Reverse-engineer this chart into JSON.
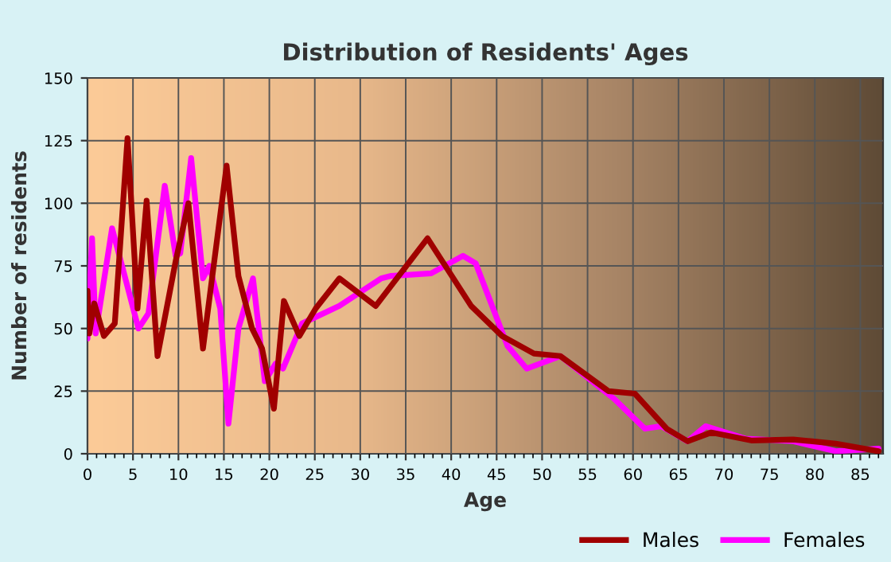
{
  "chart_data": {
    "type": "line",
    "title": "Distribution of Residents' Ages",
    "xlabel": "Age",
    "ylabel": "Number of residents",
    "xlim": [
      0,
      87.5
    ],
    "xticks": [
      0,
      5,
      10,
      15,
      20,
      25,
      30,
      35,
      40,
      45,
      50,
      55,
      60,
      65,
      70,
      75,
      80,
      85
    ],
    "ylim": [
      0,
      150
    ],
    "yticks": [
      0,
      25,
      50,
      75,
      100,
      125,
      150
    ],
    "grid": true,
    "legend": "bottom",
    "line_style": "solid",
    "marker": "none",
    "series": [
      {
        "name": "Males",
        "color": "#a00000",
        "x": [
          0,
          0.2,
          0.75,
          1.8,
          3,
          4.4,
          5.5,
          6.5,
          7.7,
          9.7,
          11.1,
          12.7,
          15.3,
          16.6,
          18.1,
          19.2,
          20.5,
          21.6,
          23.3,
          25.1,
          27.7,
          31.7,
          37.4,
          42.2,
          45.6,
          49.1,
          52,
          57.3,
          60.2,
          63.7,
          66,
          68.6,
          73,
          77.6,
          82.3,
          87
        ],
        "values": [
          65,
          48,
          60,
          47,
          52,
          126,
          58,
          101,
          39,
          77,
          100,
          42,
          115,
          71,
          50,
          42,
          18,
          61,
          47,
          58,
          70,
          59,
          86,
          59,
          47,
          40,
          39,
          25,
          24,
          10,
          5,
          8.5,
          5.3,
          5.7,
          4,
          1
        ]
      },
      {
        "name": "Females",
        "color": "#ff00ff",
        "x": [
          0,
          0.5,
          0.9,
          2.7,
          3.8,
          5.6,
          6.7,
          8.5,
          9.7,
          10.2,
          11.4,
          12.7,
          13.4,
          14.6,
          15.5,
          16.6,
          18.2,
          19.5,
          20.7,
          21.5,
          23.6,
          27.7,
          32.3,
          33.4,
          37.8,
          41.3,
          42.7,
          46.2,
          48.3,
          52,
          57.9,
          61.3,
          63.1,
          66,
          68,
          72.4,
          77.6,
          82.3,
          87
        ],
        "values": [
          46,
          86,
          48,
          90,
          75,
          50,
          56,
          107,
          79,
          80,
          118,
          70,
          75,
          58,
          12,
          50,
          70,
          29,
          36,
          34,
          52,
          59,
          70,
          71,
          72,
          79,
          76,
          43,
          34,
          39,
          22,
          10,
          11,
          5,
          11,
          6,
          5,
          1,
          2
        ]
      }
    ]
  }
}
